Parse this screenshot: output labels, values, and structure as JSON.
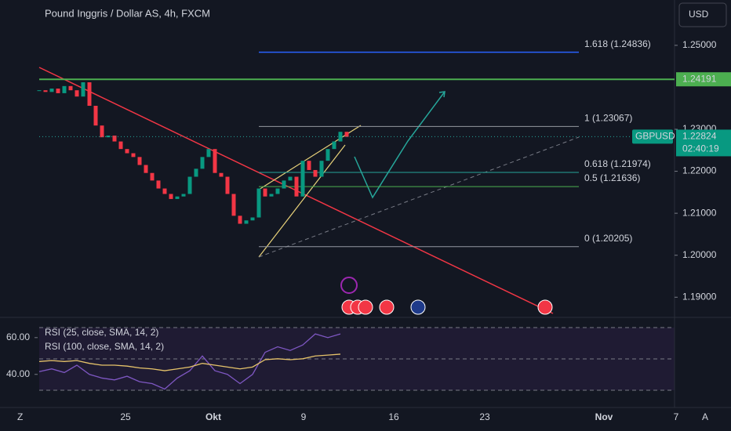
{
  "header": {
    "title": "Pound Inggris / Dollar AS, 4h, FXCM",
    "currency": "USD"
  },
  "price_chart": {
    "type": "candlestick",
    "closes": [
      1.2393,
      1.2389,
      1.2397,
      1.2386,
      1.2403,
      1.2393,
      1.2378,
      1.2412,
      1.2356,
      1.2309,
      1.2281,
      1.2285,
      1.2271,
      1.2253,
      1.2243,
      1.2234,
      1.2215,
      1.2196,
      1.2178,
      1.2159,
      1.2146,
      1.2134,
      1.214,
      1.2146,
      1.2187,
      1.2206,
      1.2234,
      1.2253,
      1.2196,
      1.2187,
      1.2146,
      1.2094,
      1.2075,
      1.2083,
      1.209,
      1.2159,
      1.214,
      1.2146,
      1.2159,
      1.2178,
      1.2187,
      1.214,
      1.2225,
      1.2203,
      1.2187,
      1.2225,
      1.2253,
      1.2271,
      1.2294,
      1.2282
    ],
    "up_color": "#089981",
    "down_color": "#f23645",
    "ylim": [
      1.1852,
      1.2608
    ],
    "yticks": [
      {
        "value": 1.25,
        "label": "1.25000"
      },
      {
        "value": 1.23,
        "label": "1.23000"
      },
      {
        "value": 1.22,
        "label": "1.22000"
      },
      {
        "value": 1.21,
        "label": "1.21000"
      },
      {
        "value": 1.2,
        "label": "1.20000"
      },
      {
        "value": 1.19,
        "label": "1.19000"
      }
    ],
    "xticks": [
      "25",
      "Okt",
      "9",
      "16",
      "23",
      "Nov",
      "7"
    ],
    "horizontal_line": {
      "value": 1.24191,
      "label": "1.24191",
      "color": "#4caf50"
    },
    "last_price": {
      "symbol": "GBPUSD",
      "value": 1.22824,
      "label": "1.22824",
      "countdown": "02:40:19"
    },
    "fib_levels": [
      {
        "value": 1.24836,
        "label": "1.618 (1.24836)",
        "color": "#2962ff"
      },
      {
        "value": 1.23067,
        "label": "1 (1.23067)",
        "color": "#9598a1"
      },
      {
        "value": 1.21974,
        "label": "0.618 (1.21974)",
        "color": "#26a69a"
      },
      {
        "value": 1.21636,
        "label": "0.5 (1.21636)",
        "color": "#4caf50"
      },
      {
        "value": 1.20205,
        "label": "0 (1.20205)",
        "color": "#9598a1"
      }
    ]
  },
  "rsi_pane": {
    "ylim": [
      22,
      71
    ],
    "yticks": [
      {
        "value": 60,
        "label": "60.00"
      },
      {
        "value": 40,
        "label": "40.00"
      }
    ],
    "series": [
      {
        "name": "RSI (25, close, SMA, 14, 2)",
        "color": "#7e57c2",
        "values": [
          41.5,
          43,
          41,
          45,
          40,
          38,
          37,
          39,
          36,
          35,
          32,
          38,
          42,
          50,
          42,
          40,
          35,
          40,
          52,
          55,
          53,
          56,
          62,
          60,
          62
        ]
      },
      {
        "name": "RSI (100, close, SMA, 14, 2)",
        "color": "#e6c36a",
        "values": [
          47,
          47.5,
          47,
          47.5,
          46,
          45,
          45,
          44.5,
          43.5,
          43,
          42,
          43,
          44,
          46,
          45,
          44,
          43,
          44,
          48,
          48.5,
          48,
          48.5,
          50,
          50.5,
          51
        ]
      }
    ]
  },
  "footer": {
    "left": "Z",
    "right": "A"
  }
}
